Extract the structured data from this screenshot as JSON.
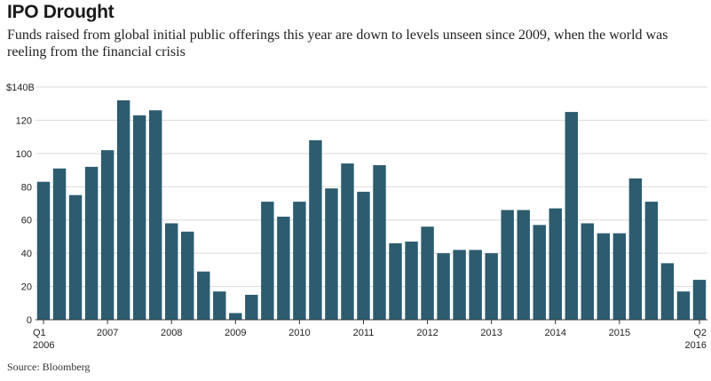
{
  "title": "IPO Drought",
  "subtitle": "Funds raised from global initial public offerings this year are down to levels unseen since 2009, when the world was reeling from the financial crisis",
  "source": "Source: Bloomberg",
  "colors": {
    "bar": "#2c5c6e",
    "grid": "#d9d9d9",
    "axis": "#333333"
  },
  "chart_data": {
    "type": "bar",
    "title": "IPO Drought",
    "xlabel": "",
    "ylabel": "",
    "ylim": [
      0,
      140
    ],
    "grid": true,
    "y_ticks": [
      {
        "value": 0,
        "label": "0"
      },
      {
        "value": 20,
        "label": "20"
      },
      {
        "value": 40,
        "label": "40"
      },
      {
        "value": 60,
        "label": "60"
      },
      {
        "value": 80,
        "label": "80"
      },
      {
        "value": 100,
        "label": "100"
      },
      {
        "value": 120,
        "label": "120"
      },
      {
        "value": 140,
        "label": "$140B"
      }
    ],
    "x_ticks": [
      {
        "index": 0,
        "label": "Q1",
        "label2": "2006"
      },
      {
        "index": 4,
        "label": "2007"
      },
      {
        "index": 8,
        "label": "2008"
      },
      {
        "index": 12,
        "label": "2009"
      },
      {
        "index": 16,
        "label": "2010"
      },
      {
        "index": 20,
        "label": "2011"
      },
      {
        "index": 24,
        "label": "2012"
      },
      {
        "index": 28,
        "label": "2013"
      },
      {
        "index": 32,
        "label": "2014"
      },
      {
        "index": 36,
        "label": "2015"
      },
      {
        "index": 41,
        "label": "Q2",
        "label2": "2016"
      }
    ],
    "categories": [
      "2006 Q1",
      "2006 Q2",
      "2006 Q3",
      "2006 Q4",
      "2007 Q1",
      "2007 Q2",
      "2007 Q3",
      "2007 Q4",
      "2008 Q1",
      "2008 Q2",
      "2008 Q3",
      "2008 Q4",
      "2009 Q1",
      "2009 Q2",
      "2009 Q3",
      "2009 Q4",
      "2010 Q1",
      "2010 Q2",
      "2010 Q3",
      "2010 Q4",
      "2011 Q1",
      "2011 Q2",
      "2011 Q3",
      "2011 Q4",
      "2012 Q1",
      "2012 Q2",
      "2012 Q3",
      "2012 Q4",
      "2013 Q1",
      "2013 Q2",
      "2013 Q3",
      "2013 Q4",
      "2014 Q1",
      "2014 Q2",
      "2014 Q3",
      "2014 Q4",
      "2015 Q1",
      "2015 Q2",
      "2015 Q3",
      "2015 Q4",
      "2016 Q1",
      "2016 Q2"
    ],
    "values": [
      83,
      91,
      75,
      92,
      102,
      132,
      123,
      126,
      58,
      53,
      29,
      17,
      4,
      15,
      71,
      62,
      71,
      108,
      79,
      94,
      77,
      93,
      46,
      47,
      56,
      40,
      42,
      42,
      40,
      66,
      66,
      57,
      67,
      125,
      58,
      52,
      52,
      85,
      71,
      34,
      17,
      24
    ]
  }
}
